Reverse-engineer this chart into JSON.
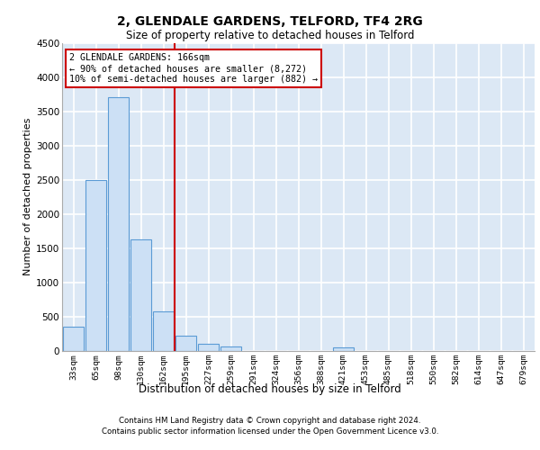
{
  "title_line1": "2, GLENDALE GARDENS, TELFORD, TF4 2RG",
  "title_line2": "Size of property relative to detached houses in Telford",
  "xlabel": "Distribution of detached houses by size in Telford",
  "ylabel": "Number of detached properties",
  "categories": [
    "33sqm",
    "65sqm",
    "98sqm",
    "130sqm",
    "162sqm",
    "195sqm",
    "227sqm",
    "259sqm",
    "291sqm",
    "324sqm",
    "356sqm",
    "388sqm",
    "421sqm",
    "453sqm",
    "485sqm",
    "518sqm",
    "550sqm",
    "582sqm",
    "614sqm",
    "647sqm",
    "679sqm"
  ],
  "values": [
    350,
    2500,
    3700,
    1625,
    575,
    225,
    100,
    60,
    0,
    0,
    0,
    0,
    55,
    0,
    0,
    0,
    0,
    0,
    0,
    0,
    0
  ],
  "bar_color": "#cce0f5",
  "bar_edge_color": "#5b9bd5",
  "vline_x": 4.5,
  "vline_color": "#cc0000",
  "ylim": [
    0,
    4500
  ],
  "yticks": [
    0,
    500,
    1000,
    1500,
    2000,
    2500,
    3000,
    3500,
    4000,
    4500
  ],
  "annotation_text": "2 GLENDALE GARDENS: 166sqm\n← 90% of detached houses are smaller (8,272)\n10% of semi-detached houses are larger (882) →",
  "annotation_box_color": "#ffffff",
  "annotation_box_edge": "#cc0000",
  "footer_line1": "Contains HM Land Registry data © Crown copyright and database right 2024.",
  "footer_line2": "Contains public sector information licensed under the Open Government Licence v3.0.",
  "background_color": "#dce8f5",
  "grid_color": "#ffffff"
}
